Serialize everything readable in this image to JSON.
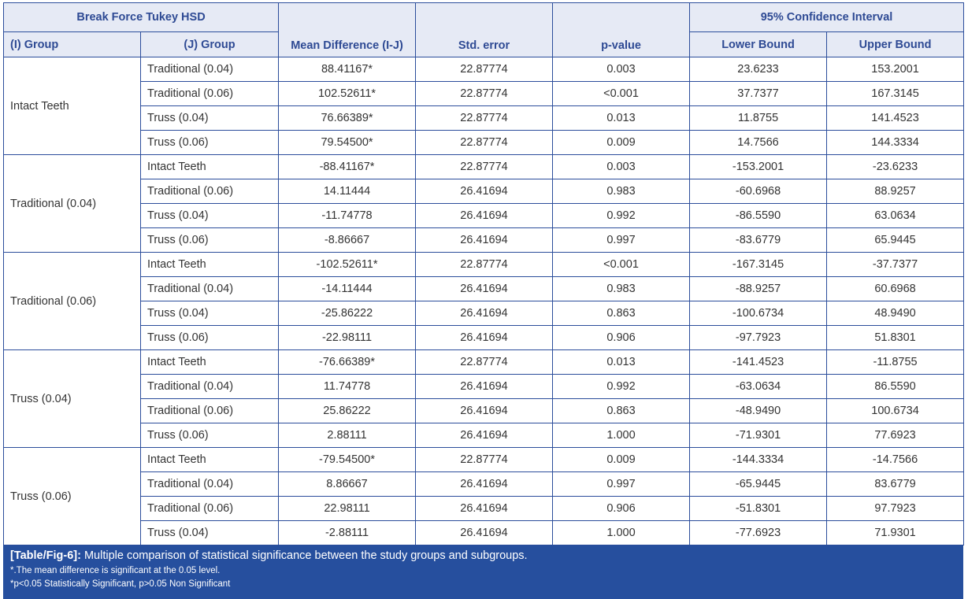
{
  "table": {
    "title": "Break Force Tukey HSD",
    "ci_header": "95% Confidence Interval",
    "headers": {
      "i_group": "(I) Group",
      "j_group": "(J) Group",
      "mean_diff": "Mean Difference (I-J)",
      "std_error": "Std. error",
      "p_value": "p-value",
      "lower": "Lower Bound",
      "upper": "Upper Bound"
    },
    "groups": [
      {
        "name": "Intact Teeth",
        "rows": [
          [
            "Traditional (0.04)",
            "88.41167*",
            "22.87774",
            "0.003",
            "23.6233",
            "153.2001"
          ],
          [
            "Traditional (0.06)",
            "102.52611*",
            "22.87774",
            "<0.001",
            "37.7377",
            "167.3145"
          ],
          [
            "Truss (0.04)",
            "76.66389*",
            "22.87774",
            "0.013",
            "11.8755",
            "141.4523"
          ],
          [
            "Truss (0.06)",
            "79.54500*",
            "22.87774",
            "0.009",
            "14.7566",
            "144.3334"
          ]
        ]
      },
      {
        "name": "Traditional (0.04)",
        "rows": [
          [
            "Intact Teeth",
            "-88.41167*",
            "22.87774",
            "0.003",
            "-153.2001",
            "-23.6233"
          ],
          [
            "Traditional (0.06)",
            "14.11444",
            "26.41694",
            "0.983",
            "-60.6968",
            "88.9257"
          ],
          [
            "Truss (0.04)",
            "-11.74778",
            "26.41694",
            "0.992",
            "-86.5590",
            "63.0634"
          ],
          [
            "Truss (0.06)",
            "-8.86667",
            "26.41694",
            "0.997",
            "-83.6779",
            "65.9445"
          ]
        ]
      },
      {
        "name": "Traditional (0.06)",
        "rows": [
          [
            "Intact Teeth",
            "-102.52611*",
            "22.87774",
            "<0.001",
            "-167.3145",
            "-37.7377"
          ],
          [
            "Traditional (0.04)",
            "-14.11444",
            "26.41694",
            "0.983",
            "-88.9257",
            "60.6968"
          ],
          [
            "Truss (0.04)",
            "-25.86222",
            "26.41694",
            "0.863",
            "-100.6734",
            "48.9490"
          ],
          [
            "Truss (0.06)",
            "-22.98111",
            "26.41694",
            "0.906",
            "-97.7923",
            "51.8301"
          ]
        ]
      },
      {
        "name": "Truss (0.04)",
        "rows": [
          [
            "Intact Teeth",
            "-76.66389*",
            "22.87774",
            "0.013",
            "-141.4523",
            "-11.8755"
          ],
          [
            "Traditional (0.04)",
            "11.74778",
            "26.41694",
            "0.992",
            "-63.0634",
            "86.5590"
          ],
          [
            "Traditional (0.06)",
            "25.86222",
            "26.41694",
            "0.863",
            "-48.9490",
            "100.6734"
          ],
          [
            "Truss (0.06)",
            "2.88111",
            "26.41694",
            "1.000",
            "-71.9301",
            "77.6923"
          ]
        ]
      },
      {
        "name": "Truss (0.06)",
        "rows": [
          [
            "Intact Teeth",
            "-79.54500*",
            "22.87774",
            "0.009",
            "-144.3334",
            "-14.7566"
          ],
          [
            "Traditional (0.04)",
            "8.86667",
            "26.41694",
            "0.997",
            "-65.9445",
            "83.6779"
          ],
          [
            "Traditional (0.06)",
            "22.98111",
            "26.41694",
            "0.906",
            "-51.8301",
            "97.7923"
          ],
          [
            "Truss (0.04)",
            "-2.88111",
            "26.41694",
            "1.000",
            "-77.6923",
            "71.9301"
          ]
        ]
      }
    ]
  },
  "caption": {
    "label": "[Table/Fig-6]:",
    "text": " Multiple comparison of statistical significance between the study groups and subgroups.",
    "note1": "*.The mean difference is significant at the 0.05 level.",
    "note2": "*p<0.05 Statistically Significant, p>0.05 Non Significant"
  },
  "colors": {
    "border": "#2b4d9b",
    "header_bg": "#e6eaf5",
    "header_text": "#2e4a94",
    "caption_bg": "#264f9e"
  }
}
